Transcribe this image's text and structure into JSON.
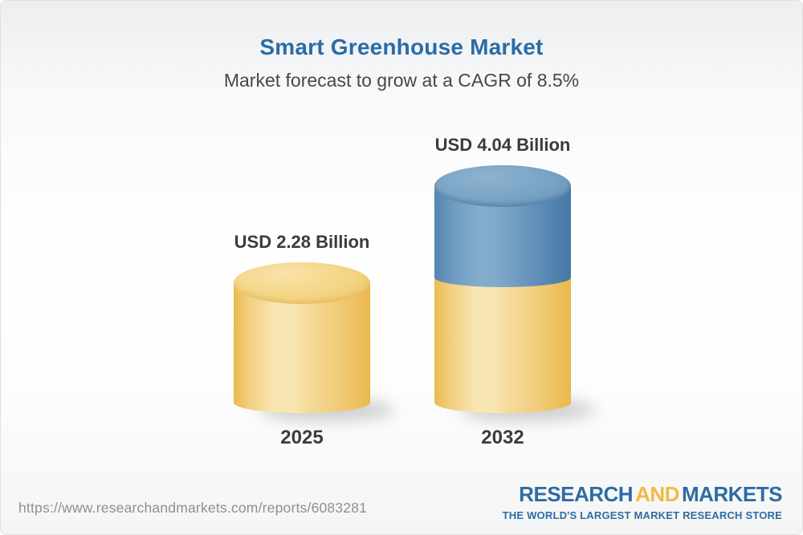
{
  "header": {
    "title": "Smart Greenhouse Market",
    "subtitle": "Market forecast to grow at a CAGR of 8.5%"
  },
  "chart_data": {
    "type": "bar",
    "bar_style": "3d-cylinder",
    "title": "Smart Greenhouse Market",
    "subtitle": "Market forecast to grow at a CAGR of 8.5%",
    "categories": [
      "2025",
      "2032"
    ],
    "values": [
      2.28,
      4.04
    ],
    "unit": "USD Billion",
    "value_labels": [
      "USD 2.28 Billion",
      "USD 4.04 Billion"
    ],
    "cagr_percent": 8.5,
    "grid": false,
    "legend_position": "none",
    "colors": {
      "base_segment": "#f2ce7e",
      "growth_segment": "#6897c0",
      "title_blue": "#2a6ca8",
      "label_dark": "#3b3b3b"
    }
  },
  "bars": [
    {
      "year": "2025",
      "value_label": "USD 2.28 Billion"
    },
    {
      "year": "2032",
      "value_label": "USD 4.04 Billion"
    }
  ],
  "footer": {
    "url": "https://www.researchandmarkets.com/reports/6083281",
    "logo": {
      "word1": "RESEARCH",
      "word2": "AND",
      "word3": "MARKETS",
      "tagline": "THE WORLD'S LARGEST MARKET RESEARCH STORE"
    }
  }
}
